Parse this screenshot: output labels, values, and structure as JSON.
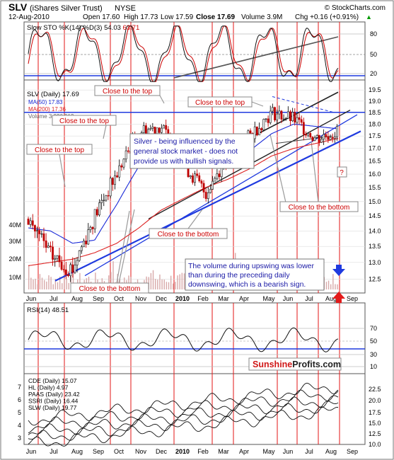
{
  "header": {
    "symbol": "SLV",
    "name": "(iShares Silver Trust)",
    "exchange": "NYSE",
    "copyright": "© StockCharts.com",
    "date": "12-Aug-2010",
    "open": "Open 17.60",
    "high": "High 17.73",
    "low": "Low 17.59",
    "close": "Close 17.69",
    "volume": "Volume 3.9M",
    "change": "Chg +0.16 (+0.91%)",
    "change_arrow": "▲"
  },
  "stoch_panel": {
    "label_prefix": "Slow STO %K(14) %D(3)",
    "k_value": "54.03",
    "d_value": "63.71",
    "ticks": [
      "80",
      "50",
      "20"
    ]
  },
  "price_panel": {
    "legend_main": "SLV (Daily) 17.69",
    "legend_ma50": "MA(50) 17.83",
    "legend_ma200": "MA(200) 17.36",
    "legend_volume": "Volume 3,920,913",
    "ticks": [
      "19.5",
      "19.0",
      "18.5",
      "18.0",
      "17.5",
      "17.0",
      "16.5",
      "16.0",
      "15.5",
      "15.0",
      "14.5",
      "14.0",
      "13.5",
      "13.0",
      "12.5"
    ],
    "volume_ticks": [
      "40M",
      "30M",
      "20M",
      "10M"
    ]
  },
  "annotations": {
    "top_1": "Close to the top",
    "top_2": "Close to the top",
    "top_3": "Close to the top",
    "top_4": "Close to the top",
    "bottom_1": "Close to the bottom",
    "bottom_2": "Close to the bottom",
    "bottom_3": "Close to the bottom",
    "question": "?",
    "blue_box": "Silver - being influenced by the general stock market - does not provide us with bullish signals.",
    "volume_box": "The volume during upswing was lower than during the preceding daily downswing, which is a bearish sign."
  },
  "x_axis": {
    "labels": [
      "Jun",
      "Jul",
      "Aug",
      "Sep",
      "Oct",
      "Nov",
      "Dec",
      "2010",
      "Feb",
      "Mar",
      "Apr",
      "May",
      "Jun",
      "Jul",
      "Aug",
      "Sep"
    ]
  },
  "rsi_panel": {
    "label": "RSI(14) 48.51",
    "ticks": [
      "70",
      "50",
      "30",
      "10"
    ]
  },
  "compare_panel": {
    "legend": [
      "CDE (Daily) 15.07",
      "HL (Daily) 4.97",
      "PAAS (Daily) 23.42",
      "SSRI (Daily) 16.44",
      "SLW (Daily) 19.77"
    ],
    "left_ticks": [
      "7",
      "6",
      "5",
      "4",
      "3"
    ],
    "right_ticks": [
      "22.5",
      "20.0",
      "17.5",
      "15.0",
      "12.5",
      "10.0"
    ]
  },
  "brand": {
    "word1": "Sunshine",
    "word2": "Profits",
    "suffix": ".com"
  },
  "colors": {
    "accent_red": "#cc0000",
    "ma50_blue": "#1a2ad8",
    "ma200_red": "#dd2222",
    "trend_blue": "#1f3adf",
    "grid_red": "#e31b1b",
    "panel_bg": "#ffffff",
    "candle_down": "#c00000"
  },
  "chart_data": {
    "type": "line",
    "title": "SLV (iShares Silver Trust) NYSE",
    "xlabel": "",
    "ylabel": "",
    "x": [
      "Jun",
      "Jul",
      "Aug",
      "Sep",
      "Oct",
      "Nov",
      "Dec",
      "2010",
      "Feb",
      "Mar",
      "Apr",
      "May",
      "Jun",
      "Jul",
      "Aug"
    ],
    "series": [
      {
        "name": "SLV (Daily)",
        "values": [
          14.4,
          13.2,
          12.8,
          14.5,
          16.0,
          17.7,
          17.9,
          16.4,
          15.3,
          16.7,
          17.5,
          18.5,
          18.2,
          17.4,
          17.7
        ]
      },
      {
        "name": "MA(50)",
        "values": [
          14.1,
          14.0,
          13.6,
          13.7,
          14.9,
          16.3,
          17.3,
          17.2,
          16.5,
          16.3,
          16.9,
          17.6,
          18.0,
          17.9,
          17.8
        ]
      },
      {
        "name": "MA(200)",
        "values": [
          12.9,
          13.0,
          13.1,
          13.3,
          13.6,
          14.1,
          14.7,
          15.1,
          15.5,
          15.8,
          16.2,
          16.7,
          17.0,
          17.2,
          17.4
        ]
      }
    ],
    "ylim": [
      12.2,
      19.8
    ],
    "y_scale": "log",
    "grid": true,
    "legend_position": "top-left"
  }
}
